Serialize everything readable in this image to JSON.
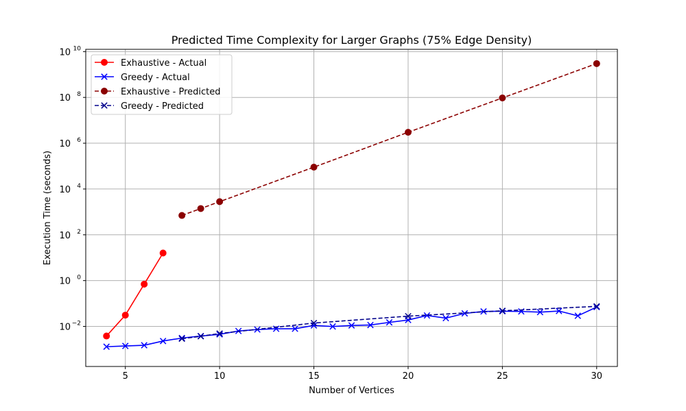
{
  "chart_data": {
    "type": "line",
    "title": "Predicted Time Complexity for Larger Graphs (75% Edge Density)",
    "xlabel": "Number of Vertices",
    "ylabel": "Execution Time (seconds)",
    "xlim": [
      2.9,
      31.1
    ],
    "ylim_log10": [
      -3.75,
      10.1
    ],
    "yscale": "log",
    "grid": true,
    "legend_position": "top-left",
    "x_ticks": [
      5,
      10,
      15,
      20,
      25,
      30
    ],
    "y_ticks": [
      {
        "exp": -2,
        "base": "10",
        "sup": "−2"
      },
      {
        "exp": 0,
        "base": "10",
        "sup": "0"
      },
      {
        "exp": 2,
        "base": "10",
        "sup": "2"
      },
      {
        "exp": 4,
        "base": "10",
        "sup": "4"
      },
      {
        "exp": 6,
        "base": "10",
        "sup": "6"
      },
      {
        "exp": 8,
        "base": "10",
        "sup": "8"
      },
      {
        "exp": 10,
        "base": "10",
        "sup": "10"
      }
    ],
    "series": [
      {
        "name": "Exhaustive - Actual",
        "color": "#ff0000",
        "marker": "circle",
        "linestyle": "solid",
        "x": [
          4,
          5,
          6,
          7
        ],
        "y": [
          0.0038,
          0.031,
          0.7,
          16
        ]
      },
      {
        "name": "Greedy - Actual",
        "color": "#0000ff",
        "marker": "x",
        "linestyle": "solid",
        "x": [
          4,
          5,
          6,
          7,
          8,
          9,
          10,
          11,
          12,
          13,
          14,
          15,
          16,
          17,
          18,
          19,
          20,
          21,
          22,
          23,
          24,
          25,
          26,
          27,
          28,
          29,
          30
        ],
        "y": [
          0.0013,
          0.0014,
          0.0015,
          0.0023,
          0.0031,
          0.0038,
          0.0045,
          0.0063,
          0.0073,
          0.0079,
          0.0079,
          0.011,
          0.0099,
          0.011,
          0.0115,
          0.015,
          0.019,
          0.03,
          0.023,
          0.037,
          0.045,
          0.046,
          0.045,
          0.042,
          0.047,
          0.029,
          0.07
        ]
      },
      {
        "name": "Exhaustive - Predicted",
        "color": "#8b0000",
        "marker": "circle",
        "linestyle": "dashed",
        "x": [
          8,
          9,
          10,
          15,
          20,
          25,
          30
        ],
        "y": [
          700,
          1400,
          2800,
          90000,
          3000000,
          95000000,
          3000000000
        ]
      },
      {
        "name": "Greedy - Predicted",
        "color": "#00008b",
        "marker": "x",
        "linestyle": "dashed",
        "x": [
          8,
          9,
          10,
          15,
          20,
          25,
          30
        ],
        "y": [
          0.0029,
          0.0037,
          0.0049,
          0.014,
          0.028,
          0.048,
          0.075
        ]
      }
    ]
  }
}
